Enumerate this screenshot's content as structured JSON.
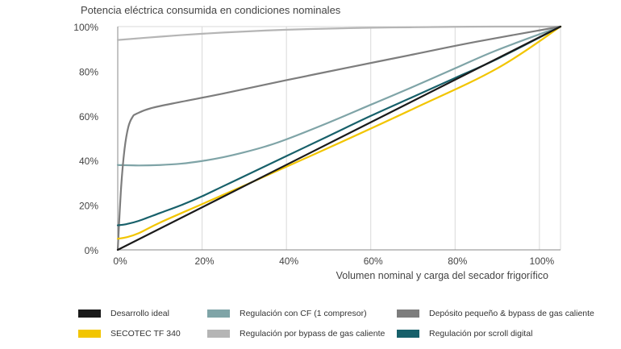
{
  "chart_data": {
    "type": "line",
    "title": "Potencia eléctrica consumida en condiciones nominales",
    "xlabel": "Volumen nominal y carga del secador frigorífico",
    "ylabel": "",
    "xlim": [
      0,
      105
    ],
    "ylim": [
      0,
      100
    ],
    "x_ticks": [
      0,
      20,
      40,
      60,
      80,
      100
    ],
    "x_tick_labels": [
      "0%",
      "20%",
      "40%",
      "60%",
      "80%",
      "100%"
    ],
    "y_ticks": [
      0,
      20,
      40,
      60,
      80,
      100
    ],
    "y_tick_labels": [
      "0%",
      "20%",
      "40%",
      "60%",
      "80%",
      "100%"
    ],
    "grid": true,
    "series": [
      {
        "name": "Desarrollo ideal",
        "color": "#1a1a1a",
        "x": [
          0,
          105
        ],
        "y": [
          0,
          100
        ]
      },
      {
        "name": "SECOTEC TF 340",
        "color": "#f2c500",
        "x": [
          0,
          2,
          5,
          10,
          20,
          30,
          50,
          70,
          90,
          105
        ],
        "y": [
          5,
          5.6,
          7.5,
          12.2,
          20.5,
          28.8,
          45.7,
          63.1,
          81.3,
          100
        ]
      },
      {
        "name": "Regulación con CF (1 compresor)",
        "color": "#7fa4a7",
        "x": [
          0,
          5,
          10,
          15,
          20,
          25,
          30,
          35,
          40,
          50,
          60,
          70,
          80,
          90,
          105
        ],
        "y": [
          38,
          37.8,
          38,
          38.6,
          39.8,
          41.5,
          43.7,
          46.3,
          49.5,
          57,
          65,
          73,
          81.3,
          89.5,
          100
        ]
      },
      {
        "name": "Regulación por bypass de gas caliente",
        "color": "#b5b5b5",
        "x": [
          0,
          10,
          20,
          30,
          40,
          50,
          60,
          70,
          80,
          90,
          105
        ],
        "y": [
          94,
          95.5,
          96.8,
          97.8,
          98.6,
          99.1,
          99.5,
          99.7,
          99.9,
          100,
          100
        ]
      },
      {
        "name": "Depósito pequeño & bypass de gas caliente",
        "color": "#7d7d7d",
        "x": [
          0,
          0.8,
          1.6,
          2.5,
          3.5,
          4.5,
          8,
          15,
          25,
          40,
          55,
          70,
          85,
          105
        ],
        "y": [
          0,
          28,
          45,
          55,
          59.5,
          61,
          63.5,
          66.3,
          70,
          76,
          81.8,
          87.5,
          93.2,
          100
        ]
      },
      {
        "name": "Regulación por scroll digital",
        "color": "#17606a",
        "x": [
          0,
          2,
          5,
          10,
          15,
          20,
          25,
          30,
          40,
          50,
          60,
          70,
          80,
          90,
          105
        ],
        "y": [
          11,
          11.5,
          13,
          16.5,
          20,
          24,
          28.5,
          33,
          42,
          51,
          60,
          68.5,
          77,
          85.5,
          100
        ]
      }
    ]
  },
  "legend": {
    "items": [
      {
        "label": "Desarrollo ideal",
        "color": "#1a1a1a"
      },
      {
        "label": "Regulación con CF (1 compresor)",
        "color": "#7fa4a7"
      },
      {
        "label": "Depósito pequeño & bypass de gas caliente",
        "color": "#7d7d7d"
      },
      {
        "label": "SECOTEC TF 340",
        "color": "#f2c500"
      },
      {
        "label": "Regulación por bypass de gas caliente",
        "color": "#b5b5b5"
      },
      {
        "label": "Regulación por scroll digital",
        "color": "#17606a"
      }
    ]
  }
}
